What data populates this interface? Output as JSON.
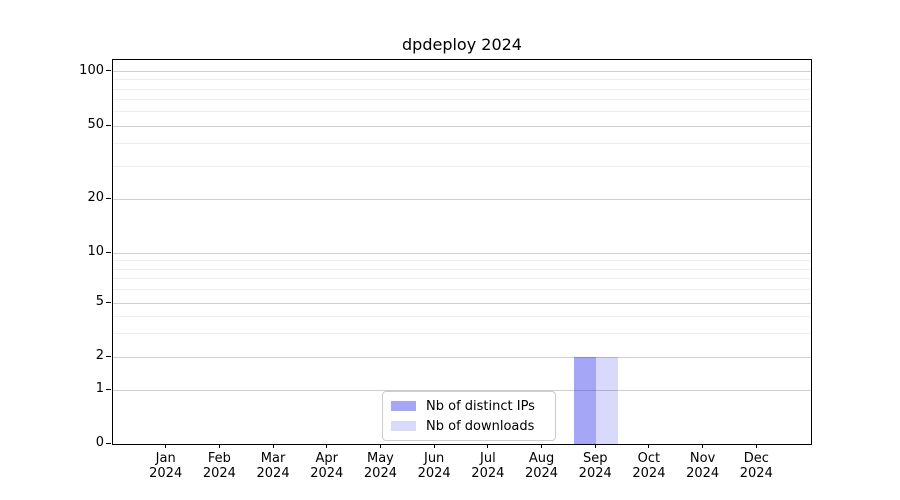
{
  "title": "dpdeploy 2024",
  "chart_data": {
    "type": "bar",
    "title": "dpdeploy 2024",
    "categories": [
      "Jan 2024",
      "Feb 2024",
      "Mar 2024",
      "Apr 2024",
      "May 2024",
      "Jun 2024",
      "Jul 2024",
      "Aug 2024",
      "Sep 2024",
      "Oct 2024",
      "Nov 2024",
      "Dec 2024"
    ],
    "series": [
      {
        "name": "Nb of distinct IPs",
        "color": "rgba(0,0,230,0.35)",
        "values": [
          0,
          0,
          0,
          0,
          0,
          0,
          0,
          0,
          2,
          0,
          0,
          0
        ]
      },
      {
        "name": "Nb of downloads",
        "color": "rgba(0,0,230,0.15)",
        "values": [
          0,
          0,
          0,
          0,
          0,
          0,
          0,
          0,
          2,
          0,
          0,
          0
        ]
      }
    ],
    "yscale": "symlog",
    "y_ticks": [
      0,
      1,
      2,
      5,
      10,
      20,
      50,
      100
    ],
    "y_minor_ticks": [
      3,
      4,
      6,
      7,
      8,
      9,
      30,
      40,
      60,
      70,
      80,
      90
    ],
    "ylim": [
      0,
      110
    ],
    "xlabel": "",
    "ylabel": "",
    "grid": "horizontal",
    "legend_position": "lower center"
  },
  "legend": {
    "items": [
      {
        "label": "Nb of distinct IPs",
        "color": "rgba(0,0,230,0.35)"
      },
      {
        "label": "Nb of downloads",
        "color": "rgba(0,0,230,0.15)"
      }
    ]
  }
}
